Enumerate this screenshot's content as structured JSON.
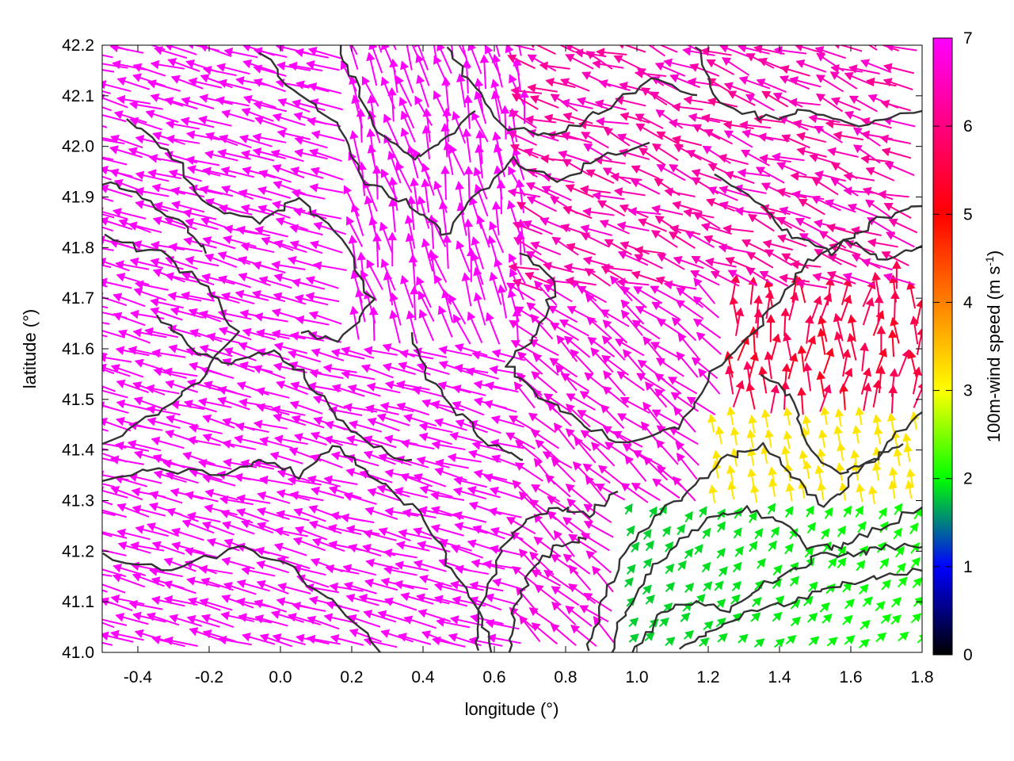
{
  "chart_data": {
    "type": "vector-field",
    "xlabel": "longitude (°)",
    "ylabel": "latitude (°)",
    "xlim": [
      -0.5,
      1.8
    ],
    "ylim": [
      41.0,
      42.2
    ],
    "xticks": [
      {
        "value": -0.4,
        "label": "-0.4"
      },
      {
        "value": -0.2,
        "label": "-0.2"
      },
      {
        "value": 0.0,
        "label": "0.0"
      },
      {
        "value": 0.2,
        "label": "0.2"
      },
      {
        "value": 0.4,
        "label": "0.4"
      },
      {
        "value": 0.6,
        "label": "0.6"
      },
      {
        "value": 0.8,
        "label": "0.8"
      },
      {
        "value": 1.0,
        "label": "1.0"
      },
      {
        "value": 1.2,
        "label": "1.2"
      },
      {
        "value": 1.4,
        "label": "1.4"
      },
      {
        "value": 1.6,
        "label": "1.6"
      },
      {
        "value": 1.8,
        "label": "1.8"
      }
    ],
    "yticks": [
      {
        "value": 41.0,
        "label": "41.0"
      },
      {
        "value": 41.1,
        "label": "41.1"
      },
      {
        "value": 41.2,
        "label": "41.2"
      },
      {
        "value": 41.3,
        "label": "41.3"
      },
      {
        "value": 41.4,
        "label": "41.4"
      },
      {
        "value": 41.5,
        "label": "41.5"
      },
      {
        "value": 41.6,
        "label": "41.6"
      },
      {
        "value": 41.7,
        "label": "41.7"
      },
      {
        "value": 41.8,
        "label": "41.8"
      },
      {
        "value": 41.9,
        "label": "41.9"
      },
      {
        "value": 42.0,
        "label": "42.0"
      },
      {
        "value": 42.1,
        "label": "42.1"
      },
      {
        "value": 42.2,
        "label": "42.2"
      }
    ],
    "colorbar": {
      "title": "100m-wind speed (m s-1)",
      "title_main": "100m-wind speed (m s",
      "title_sup": "-1",
      "title_end": ")",
      "range": [
        0,
        7
      ],
      "ticks": [
        {
          "value": 0,
          "label": "0"
        },
        {
          "value": 1,
          "label": "1"
        },
        {
          "value": 2,
          "label": "2"
        },
        {
          "value": 3,
          "label": "3"
        },
        {
          "value": 4,
          "label": "4"
        },
        {
          "value": 5,
          "label": "5"
        },
        {
          "value": 6,
          "label": "6"
        },
        {
          "value": 7,
          "label": "7"
        }
      ],
      "colors": [
        "#000000",
        "#0000ff",
        "#00ff00",
        "#ffff00",
        "#ff8000",
        "#ff0000",
        "#ff00ff"
      ]
    },
    "grid": false,
    "contour_color": "#333333",
    "regions": [
      {
        "name": "west-strong-westward-flow",
        "lon": [
          -0.5,
          0.6
        ],
        "lat": [
          41.0,
          41.9
        ],
        "speed": 7,
        "direction": "toward west-northwest"
      },
      {
        "name": "north-central-northward-flow",
        "lon": [
          0.2,
          0.7
        ],
        "lat": [
          41.6,
          42.2
        ],
        "speed": 7,
        "direction": "toward north-northwest"
      },
      {
        "name": "northeast-red-flow",
        "lon": [
          0.7,
          1.8
        ],
        "lat": [
          41.7,
          42.2
        ],
        "speed": 6,
        "direction": "toward west-northwest"
      },
      {
        "name": "east-mixed-flow",
        "lon": [
          1.2,
          1.8
        ],
        "lat": [
          41.3,
          41.7
        ],
        "speed": 5,
        "direction": "toward north"
      },
      {
        "name": "southeast-weak-flow",
        "lon": [
          0.9,
          1.8
        ],
        "lat": [
          41.0,
          41.3
        ],
        "speed": 2,
        "direction": "toward northeast"
      }
    ]
  }
}
